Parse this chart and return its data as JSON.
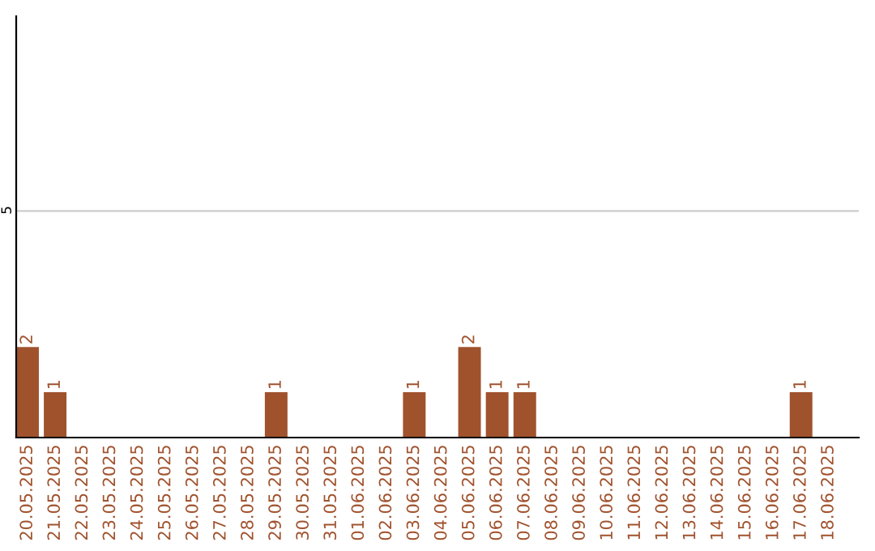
{
  "chart_data": {
    "type": "bar",
    "categories": [
      "20.05.2025",
      "21.05.2025",
      "22.05.2025",
      "23.05.2025",
      "24.05.2025",
      "25.05.2025",
      "26.05.2025",
      "27.05.2025",
      "28.05.2025",
      "29.05.2025",
      "30.05.2025",
      "31.05.2025",
      "01.06.2025",
      "02.06.2025",
      "03.06.2025",
      "04.06.2025",
      "05.06.2025",
      "06.06.2025",
      "07.06.2025",
      "08.06.2025",
      "09.06.2025",
      "10.06.2025",
      "11.06.2025",
      "12.06.2025",
      "13.06.2025",
      "14.06.2025",
      "15.06.2025",
      "16.06.2025",
      "17.06.2025",
      "18.06.2025"
    ],
    "values": [
      2,
      1,
      0,
      0,
      0,
      0,
      0,
      0,
      0,
      1,
      0,
      0,
      0,
      0,
      1,
      0,
      2,
      1,
      1,
      0,
      0,
      0,
      0,
      0,
      0,
      0,
      0,
      0,
      1,
      0
    ],
    "value_labels": [
      "2",
      "1",
      null,
      null,
      null,
      null,
      null,
      null,
      null,
      "1",
      null,
      null,
      null,
      null,
      "1",
      null,
      "2",
      "1",
      "1",
      null,
      null,
      null,
      null,
      null,
      null,
      null,
      null,
      null,
      "1",
      null
    ],
    "color": "#a0522d",
    "ylim": [
      0,
      9.3
    ],
    "yticks": [
      5
    ],
    "grid": "y"
  }
}
